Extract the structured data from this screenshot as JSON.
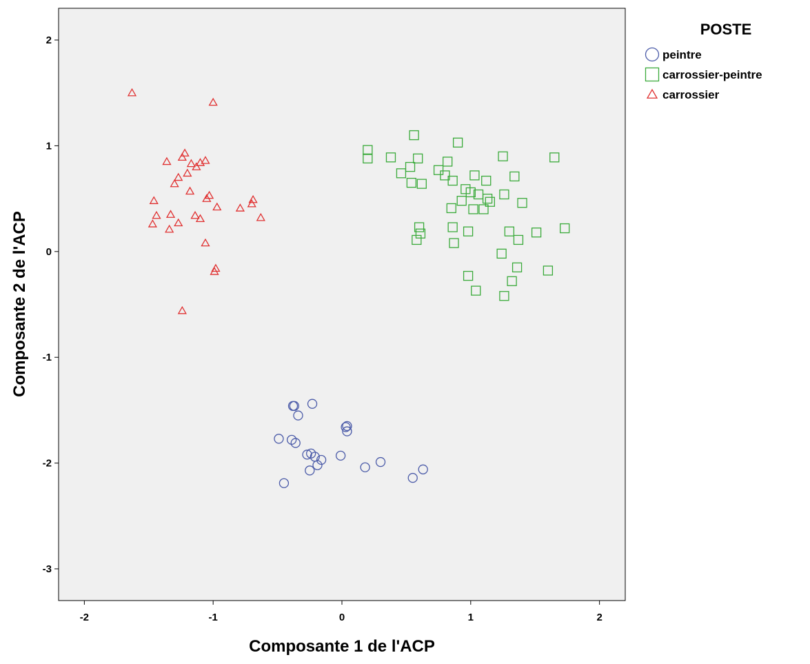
{
  "chart_data": {
    "type": "scatter",
    "title": "",
    "xlabel": "Composante 1 de l'ACP",
    "ylabel": "Composante 2 de l'ACP",
    "xlim": [
      -2.2,
      2.2
    ],
    "ylim": [
      -3.3,
      2.3
    ],
    "x_ticks": [
      -2,
      -1,
      0,
      1,
      2
    ],
    "y_ticks": [
      -3,
      -2,
      -1,
      0,
      1,
      2
    ],
    "grid": false,
    "background": "#f0f0f0",
    "legend": {
      "title": "POSTE",
      "placement": "outside-top-right",
      "entries": [
        "peintre",
        "carrossier-peintre",
        "carrossier"
      ]
    },
    "series": [
      {
        "name": "peintre",
        "marker": "circle",
        "color": "#4a5aa8",
        "points": [
          [
            -0.38,
            -1.46
          ],
          [
            -0.37,
            -1.46
          ],
          [
            -0.23,
            -1.44
          ],
          [
            -0.34,
            -1.55
          ],
          [
            0.03,
            -1.66
          ],
          [
            0.04,
            -1.65
          ],
          [
            0.04,
            -1.7
          ],
          [
            -0.49,
            -1.77
          ],
          [
            -0.39,
            -1.78
          ],
          [
            -0.36,
            -1.81
          ],
          [
            -0.27,
            -1.92
          ],
          [
            -0.24,
            -1.91
          ],
          [
            -0.21,
            -1.94
          ],
          [
            -0.19,
            -2.02
          ],
          [
            -0.16,
            -1.97
          ],
          [
            -0.01,
            -1.93
          ],
          [
            0.18,
            -2.04
          ],
          [
            0.3,
            -1.99
          ],
          [
            -0.25,
            -2.07
          ],
          [
            -0.45,
            -2.19
          ],
          [
            0.55,
            -2.14
          ],
          [
            0.63,
            -2.06
          ]
        ]
      },
      {
        "name": "carrossier-peintre",
        "marker": "square",
        "color": "#3aaa3a",
        "points": [
          [
            0.2,
            0.96
          ],
          [
            0.2,
            0.88
          ],
          [
            0.38,
            0.89
          ],
          [
            0.56,
            1.1
          ],
          [
            0.59,
            0.88
          ],
          [
            0.9,
            1.03
          ],
          [
            1.25,
            0.9
          ],
          [
            1.65,
            0.89
          ],
          [
            0.46,
            0.74
          ],
          [
            0.53,
            0.8
          ],
          [
            0.75,
            0.77
          ],
          [
            0.82,
            0.85
          ],
          [
            0.8,
            0.72
          ],
          [
            0.86,
            0.67
          ],
          [
            1.03,
            0.72
          ],
          [
            1.34,
            0.71
          ],
          [
            0.54,
            0.65
          ],
          [
            0.62,
            0.64
          ],
          [
            0.96,
            0.59
          ],
          [
            1.0,
            0.56
          ],
          [
            1.06,
            0.54
          ],
          [
            1.12,
            0.67
          ],
          [
            1.26,
            0.54
          ],
          [
            0.93,
            0.48
          ],
          [
            1.13,
            0.5
          ],
          [
            1.15,
            0.47
          ],
          [
            0.85,
            0.41
          ],
          [
            1.02,
            0.4
          ],
          [
            1.1,
            0.4
          ],
          [
            1.4,
            0.46
          ],
          [
            0.6,
            0.23
          ],
          [
            0.61,
            0.17
          ],
          [
            0.58,
            0.11
          ],
          [
            0.86,
            0.23
          ],
          [
            0.98,
            0.19
          ],
          [
            0.87,
            0.08
          ],
          [
            1.3,
            0.19
          ],
          [
            1.51,
            0.18
          ],
          [
            1.73,
            0.22
          ],
          [
            1.37,
            0.11
          ],
          [
            1.24,
            -0.02
          ],
          [
            1.36,
            -0.15
          ],
          [
            1.6,
            -0.18
          ],
          [
            0.98,
            -0.23
          ],
          [
            1.32,
            -0.28
          ],
          [
            1.04,
            -0.37
          ],
          [
            1.26,
            -0.42
          ]
        ]
      },
      {
        "name": "carrossier",
        "marker": "triangle",
        "color": "#e03030",
        "points": [
          [
            -1.63,
            1.5
          ],
          [
            -1.0,
            1.41
          ],
          [
            -1.22,
            0.93
          ],
          [
            -1.36,
            0.85
          ],
          [
            -1.24,
            0.89
          ],
          [
            -1.17,
            0.83
          ],
          [
            -1.13,
            0.8
          ],
          [
            -1.1,
            0.84
          ],
          [
            -1.06,
            0.86
          ],
          [
            -1.2,
            0.74
          ],
          [
            -1.27,
            0.7
          ],
          [
            -1.3,
            0.64
          ],
          [
            -1.18,
            0.57
          ],
          [
            -1.05,
            0.5
          ],
          [
            -1.03,
            0.53
          ],
          [
            -1.46,
            0.48
          ],
          [
            -0.97,
            0.42
          ],
          [
            -0.79,
            0.41
          ],
          [
            -0.69,
            0.49
          ],
          [
            -0.7,
            0.45
          ],
          [
            -1.44,
            0.34
          ],
          [
            -1.33,
            0.35
          ],
          [
            -1.14,
            0.34
          ],
          [
            -1.1,
            0.31
          ],
          [
            -0.63,
            0.32
          ],
          [
            -1.47,
            0.26
          ],
          [
            -1.27,
            0.27
          ],
          [
            -1.34,
            0.21
          ],
          [
            -1.06,
            0.08
          ],
          [
            -0.98,
            -0.16
          ],
          [
            -0.99,
            -0.19
          ],
          [
            -1.24,
            -0.56
          ]
        ]
      }
    ]
  }
}
